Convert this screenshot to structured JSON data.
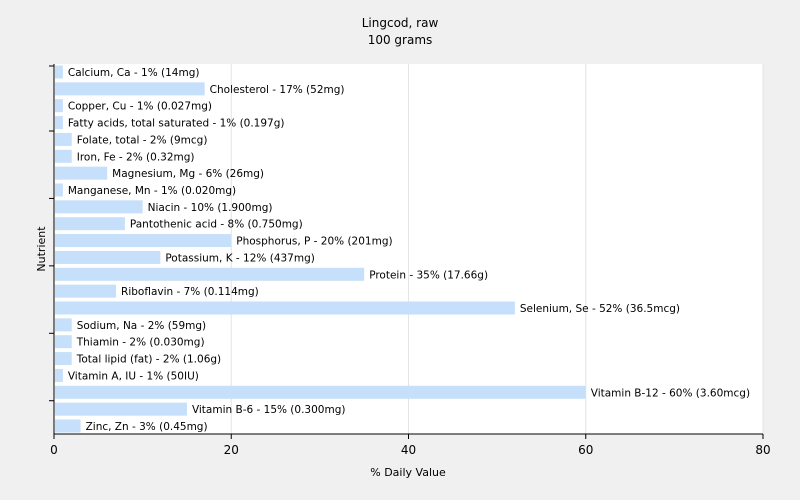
{
  "chart_data": {
    "type": "bar",
    "orientation": "horizontal",
    "title": "Lingcod, raw",
    "subtitle": "100 grams",
    "xlabel": "% Daily Value",
    "ylabel": "Nutrient",
    "xlim": [
      0,
      80
    ],
    "xticks": [
      "0",
      "20",
      "40",
      "60",
      "80"
    ],
    "grid": true,
    "bar_color": "#c6dffa",
    "categories": [
      "Calcium, Ca",
      "Cholesterol",
      "Copper, Cu",
      "Fatty acids, total saturated",
      "Folate, total",
      "Iron, Fe",
      "Magnesium, Mg",
      "Manganese, Mn",
      "Niacin",
      "Pantothenic acid",
      "Phosphorus, P",
      "Potassium, K",
      "Protein",
      "Riboflavin",
      "Selenium, Se",
      "Sodium, Na",
      "Thiamin",
      "Total lipid (fat)",
      "Vitamin A, IU",
      "Vitamin B-12",
      "Vitamin B-6",
      "Zinc, Zn"
    ],
    "values": [
      1,
      17,
      1,
      1,
      2,
      2,
      6,
      1,
      10,
      8,
      20,
      12,
      35,
      7,
      52,
      2,
      2,
      2,
      1,
      60,
      15,
      3
    ],
    "labels": [
      "Calcium, Ca - 1% (14mg)",
      "Cholesterol - 17% (52mg)",
      "Copper, Cu - 1% (0.027mg)",
      "Fatty acids, total saturated - 1% (0.197g)",
      "Folate, total - 2% (9mcg)",
      "Iron, Fe - 2% (0.32mg)",
      "Magnesium, Mg - 6% (26mg)",
      "Manganese, Mn - 1% (0.020mg)",
      "Niacin - 10% (1.900mg)",
      "Pantothenic acid - 8% (0.750mg)",
      "Phosphorus, P - 20% (201mg)",
      "Potassium, K - 12% (437mg)",
      "Protein - 35% (17.66g)",
      "Riboflavin - 7% (0.114mg)",
      "Selenium, Se - 52% (36.5mcg)",
      "Sodium, Na - 2% (59mg)",
      "Thiamin - 2% (0.030mg)",
      "Total lipid (fat) - 2% (1.06g)",
      "Vitamin A, IU - 1% (50IU)",
      "Vitamin B-12 - 60% (3.60mcg)",
      "Vitamin B-6 - 15% (0.300mg)",
      "Zinc, Zn - 3% (0.45mg)"
    ]
  }
}
